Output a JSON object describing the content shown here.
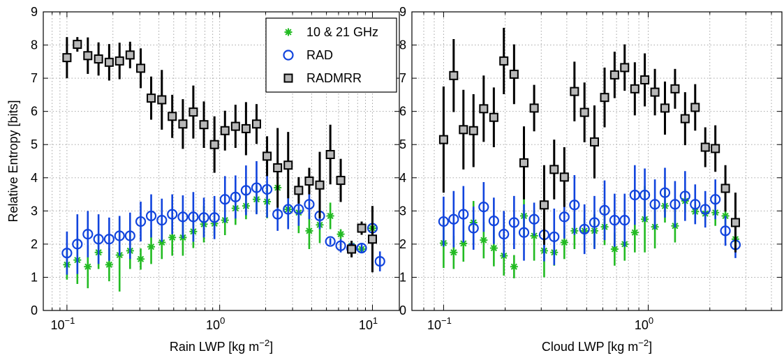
{
  "chart_data": [
    {
      "type": "scatter",
      "xscale": "log",
      "xlim": [
        0.07,
        15
      ],
      "ylim": [
        0,
        9
      ],
      "grid": true,
      "ylabel": "Relative Entropy [bits]",
      "xlabel": {
        "main": "Rain LWP [kg m",
        "sup": "−2",
        "end": "]"
      },
      "yticks": [
        "0",
        "1",
        "2",
        "3",
        "4",
        "5",
        "6",
        "7",
        "8",
        "9"
      ],
      "xticks": [
        {
          "base": "10",
          "exp": "−1",
          "value": 0.1
        },
        {
          "base": "10",
          "exp": "0",
          "value": 1
        },
        {
          "base": "10",
          "exp": "1",
          "value": 10
        }
      ],
      "legend": {
        "position": "top-right",
        "entries": [
          "10 & 21 GHz",
          "RAD",
          "RADMRR"
        ]
      },
      "series": [
        {
          "name": "10 & 21 GHz",
          "marker": "asterisk",
          "color": "#22bb22",
          "x": [
            0.1,
            0.117,
            0.137,
            0.161,
            0.189,
            0.221,
            0.259,
            0.304,
            0.356,
            0.418,
            0.489,
            0.574,
            0.672,
            0.788,
            0.924,
            1.083,
            1.269,
            1.487,
            1.743,
            2.043,
            2.395,
            2.807,
            3.29,
            3.857,
            4.52,
            5.3,
            6.2,
            7.3,
            8.5,
            10.0
          ],
          "y": [
            1.38,
            1.52,
            1.32,
            1.75,
            1.38,
            1.67,
            1.8,
            1.55,
            1.92,
            2.05,
            2.2,
            2.2,
            2.38,
            2.6,
            2.62,
            2.72,
            3.08,
            3.15,
            3.35,
            3.28,
            3.7,
            3.05,
            2.95,
            2.4,
            2.58,
            2.85,
            2.3,
            1.95,
            1.85,
            2.48
          ],
          "err": [
            0.45,
            0.72,
            0.65,
            0.5,
            0.5,
            1.1,
            0.55,
            0.32,
            0.52,
            0.5,
            0.55,
            0.55,
            0.5,
            0.55,
            0.35,
            0.45,
            0.5,
            0.4,
            0.42,
            0.5,
            0.45,
            0.55,
            0.62,
            0.55,
            0.55,
            0.4,
            0.15,
            0.1,
            0.1,
            0.12
          ]
        },
        {
          "name": "RAD",
          "marker": "circle",
          "color": "#1144dd",
          "x": [
            0.1,
            0.117,
            0.137,
            0.161,
            0.189,
            0.221,
            0.259,
            0.304,
            0.356,
            0.418,
            0.489,
            0.574,
            0.672,
            0.788,
            0.924,
            1.083,
            1.269,
            1.487,
            1.743,
            2.043,
            2.395,
            2.807,
            3.29,
            3.857,
            4.52,
            5.3,
            6.2,
            7.3,
            8.5,
            10.0,
            11.2
          ],
          "y": [
            1.73,
            2.0,
            2.3,
            2.15,
            2.15,
            2.25,
            2.25,
            2.68,
            2.85,
            2.72,
            2.9,
            2.82,
            2.82,
            2.8,
            2.8,
            3.35,
            3.42,
            3.62,
            3.7,
            3.65,
            2.9,
            3.05,
            3.05,
            3.2,
            2.85,
            2.08,
            1.95,
            1.87,
            1.88,
            2.48,
            1.48
          ],
          "err": [
            0.65,
            0.9,
            0.7,
            0.75,
            0.65,
            0.6,
            0.7,
            0.6,
            0.65,
            0.65,
            0.6,
            0.65,
            0.75,
            0.6,
            0.65,
            0.7,
            0.65,
            0.75,
            0.8,
            0.85,
            0.5,
            0.6,
            0.5,
            0.45,
            0.4,
            0.1,
            0.2,
            0.12,
            0.12,
            0.2,
            0.3
          ]
        },
        {
          "name": "RADMRR",
          "marker": "square",
          "color": "#000000",
          "fill": "#b8b8b8",
          "x": [
            0.1,
            0.117,
            0.137,
            0.161,
            0.189,
            0.221,
            0.259,
            0.304,
            0.356,
            0.418,
            0.489,
            0.574,
            0.672,
            0.788,
            0.924,
            1.083,
            1.269,
            1.487,
            1.743,
            2.043,
            2.395,
            2.807,
            3.29,
            3.857,
            4.52,
            5.3,
            6.2,
            7.3,
            8.5,
            10.0
          ],
          "y": [
            7.62,
            8.02,
            7.68,
            7.58,
            7.48,
            7.52,
            7.7,
            7.3,
            6.4,
            6.35,
            5.85,
            5.62,
            5.98,
            5.6,
            5.0,
            5.42,
            5.55,
            5.48,
            5.62,
            4.65,
            4.3,
            4.38,
            3.62,
            3.9,
            3.78,
            4.7,
            3.92,
            1.85,
            2.48,
            2.15
          ],
          "err": [
            0.62,
            0.22,
            0.55,
            0.5,
            0.55,
            0.55,
            0.4,
            0.6,
            0.65,
            0.9,
            0.65,
            0.75,
            0.8,
            0.7,
            0.85,
            0.6,
            0.65,
            0.8,
            0.6,
            0.6,
            1.2,
            1.0,
            0.4,
            0.4,
            1.0,
            0.9,
            0.65,
            0.25,
            0.2,
            1.0
          ]
        }
      ]
    },
    {
      "type": "scatter",
      "xscale": "log",
      "xlim": [
        0.07,
        4.5
      ],
      "ylim": [
        0,
        9
      ],
      "grid": true,
      "xlabel": {
        "main": "Cloud LWP [kg m",
        "sup": "−2",
        "end": "]"
      },
      "yticks": [
        "0",
        "1",
        "2",
        "3",
        "4",
        "5",
        "6",
        "7",
        "8",
        "9"
      ],
      "xticks": [
        {
          "base": "10",
          "exp": "−1",
          "value": 0.1
        },
        {
          "base": "10",
          "exp": "0",
          "value": 1
        }
      ],
      "series": [
        {
          "name": "10 & 21 GHz",
          "marker": "asterisk",
          "color": "#22bb22",
          "x": [
            0.1,
            0.112,
            0.125,
            0.14,
            0.157,
            0.176,
            0.197,
            0.221,
            0.247,
            0.277,
            0.31,
            0.347,
            0.389,
            0.436,
            0.488,
            0.546,
            0.612,
            0.685,
            0.767,
            0.86,
            0.962,
            1.078,
            1.207,
            1.352,
            1.514,
            1.696,
            1.9,
            2.128,
            2.383,
            2.668
          ],
          "y": [
            2.03,
            1.75,
            2.02,
            2.65,
            2.12,
            1.88,
            1.65,
            1.32,
            2.85,
            2.25,
            1.8,
            1.75,
            2.05,
            2.4,
            2.4,
            2.4,
            2.52,
            1.85,
            2.0,
            2.35,
            2.75,
            2.52,
            3.15,
            2.55,
            3.3,
            2.98,
            2.92,
            2.95,
            2.85,
            2.15
          ],
          "err": [
            0.75,
            0.5,
            0.55,
            0.65,
            0.55,
            0.55,
            0.6,
            0.35,
            0.6,
            0.75,
            0.8,
            0.4,
            0.5,
            0.55,
            0.4,
            0.5,
            0.55,
            0.5,
            0.5,
            0.6,
            1.0,
            0.65,
            0.5,
            0.5,
            0.35,
            0.2,
            0.3,
            0.4,
            0.3,
            0.2
          ]
        },
        {
          "name": "RAD",
          "marker": "circle",
          "color": "#1144dd",
          "x": [
            0.1,
            0.112,
            0.125,
            0.14,
            0.157,
            0.176,
            0.197,
            0.221,
            0.247,
            0.277,
            0.31,
            0.347,
            0.389,
            0.436,
            0.488,
            0.546,
            0.612,
            0.685,
            0.767,
            0.86,
            0.962,
            1.078,
            1.207,
            1.352,
            1.514,
            1.696,
            1.9,
            2.128,
            2.383,
            2.668
          ],
          "y": [
            2.68,
            2.75,
            2.9,
            2.48,
            3.12,
            2.7,
            2.3,
            2.65,
            2.35,
            2.75,
            2.28,
            2.22,
            2.82,
            3.18,
            2.45,
            2.65,
            3.02,
            2.72,
            2.72,
            3.48,
            3.48,
            3.2,
            3.55,
            3.2,
            3.45,
            3.2,
            3.05,
            3.35,
            2.4,
            1.98
          ],
          "err": [
            0.75,
            0.85,
            0.85,
            0.65,
            0.75,
            0.7,
            0.7,
            0.8,
            0.85,
            0.5,
            0.8,
            0.85,
            0.65,
            0.9,
            0.75,
            0.8,
            0.9,
            0.8,
            0.8,
            0.9,
            0.8,
            0.75,
            0.75,
            0.7,
            0.75,
            0.6,
            0.55,
            0.6,
            0.45,
            0.4
          ]
        },
        {
          "name": "RADMRR",
          "marker": "square",
          "color": "#000000",
          "fill": "#b8b8b8",
          "x": [
            0.1,
            0.112,
            0.125,
            0.14,
            0.157,
            0.176,
            0.197,
            0.221,
            0.247,
            0.277,
            0.31,
            0.347,
            0.389,
            0.436,
            0.488,
            0.546,
            0.612,
            0.685,
            0.767,
            0.86,
            0.962,
            1.078,
            1.207,
            1.352,
            1.514,
            1.696,
            1.9,
            2.128,
            2.383,
            2.668
          ],
          "y": [
            5.15,
            7.08,
            5.45,
            5.42,
            6.08,
            5.82,
            7.52,
            7.12,
            4.45,
            6.1,
            3.18,
            4.25,
            4.02,
            6.6,
            5.97,
            5.08,
            6.42,
            7.1,
            7.32,
            6.68,
            6.95,
            6.58,
            6.1,
            6.68,
            5.78,
            6.12,
            4.92,
            4.88,
            3.68,
            2.65
          ],
          "err": [
            1.6,
            1.1,
            1.2,
            1.1,
            1.0,
            0.9,
            1.0,
            0.9,
            1.1,
            0.7,
            1.2,
            0.9,
            0.9,
            0.9,
            0.9,
            1.1,
            0.9,
            0.7,
            0.7,
            0.8,
            0.8,
            0.7,
            0.8,
            0.6,
            0.8,
            0.7,
            0.6,
            0.7,
            0.7,
            0.9
          ]
        }
      ]
    }
  ]
}
